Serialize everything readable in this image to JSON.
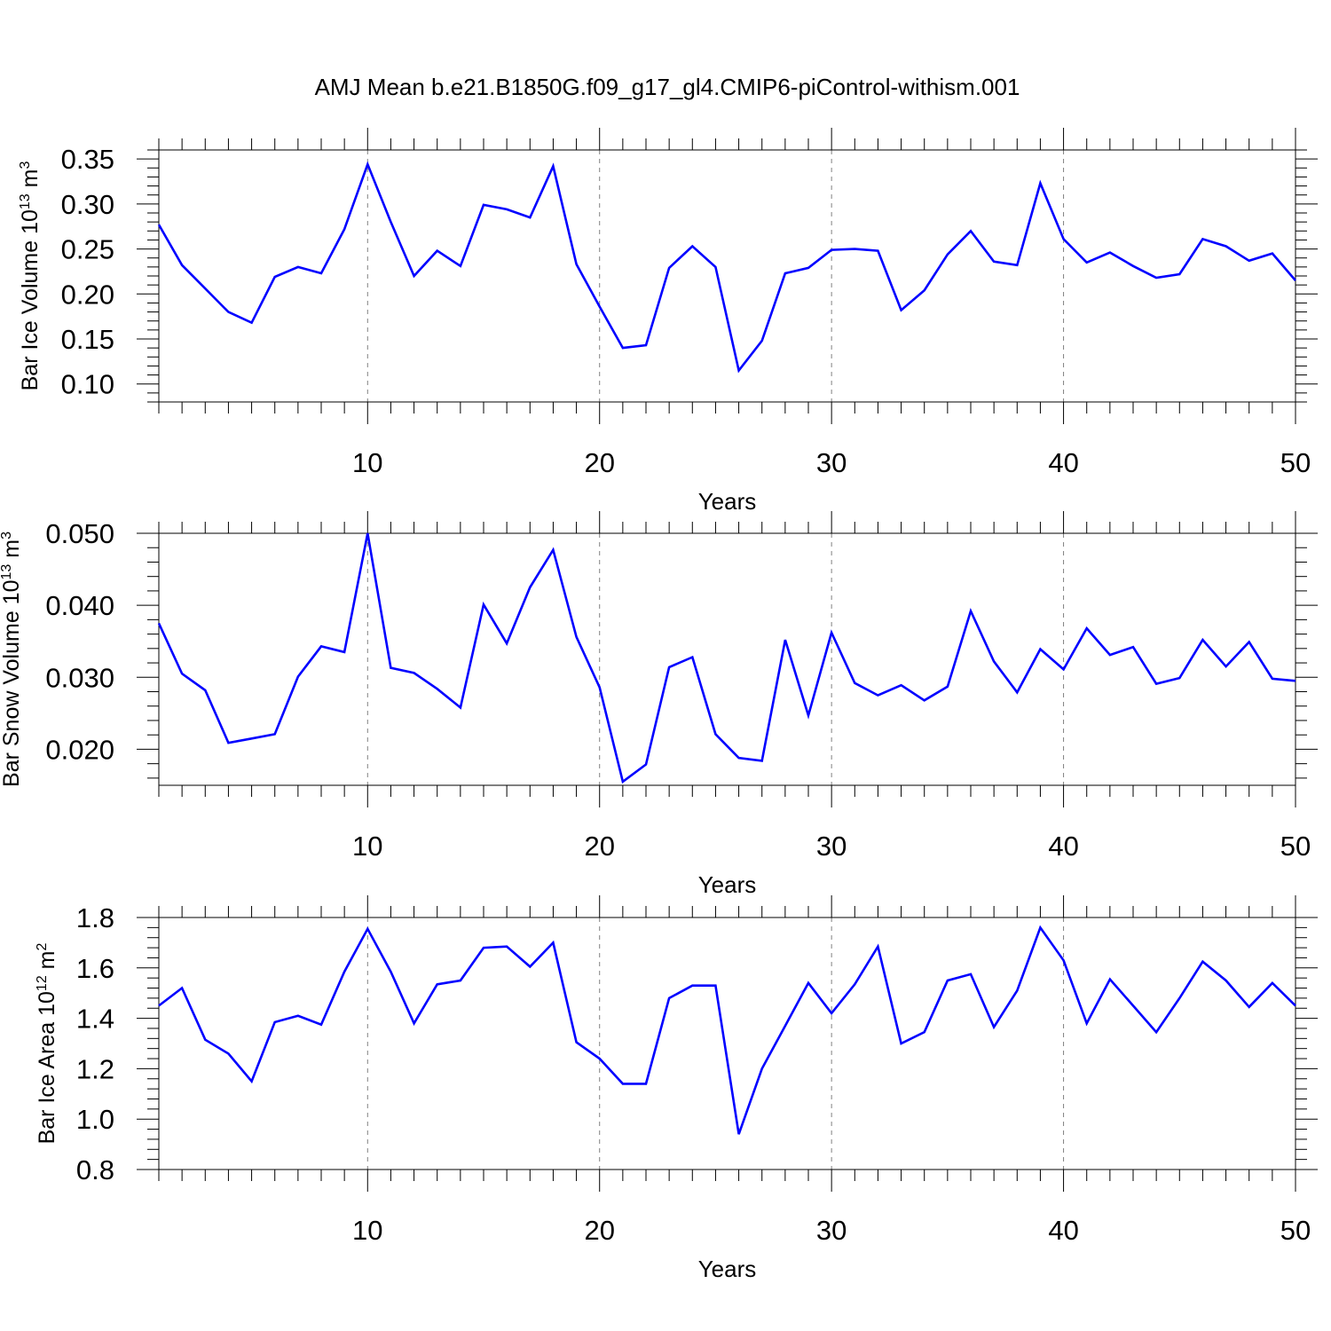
{
  "title": "AMJ Mean b.e21.B1850G.f09_g17_gl4.CMIP6-piControl-withism.001",
  "colors": {
    "line": "#0000ff",
    "axis": "#000000",
    "grid": "#808080",
    "background": "#ffffff"
  },
  "chart_data": [
    {
      "type": "line",
      "ylabel": {
        "text": "Bar Ice Volume 10",
        "exp": "13",
        "unit": " m",
        "unit_exp": "3"
      },
      "xlabel": "Years",
      "xlim": [
        1,
        50
      ],
      "ylim": [
        0.08,
        0.36
      ],
      "xticks": [
        10,
        20,
        30,
        40,
        50
      ],
      "xtick_labels": [
        "10",
        "20",
        "30",
        "40",
        "50"
      ],
      "yticks": [
        0.1,
        0.15,
        0.2,
        0.25,
        0.3,
        0.35
      ],
      "ytick_labels": [
        "0.10",
        "0.15",
        "0.20",
        "0.25",
        "0.30",
        "0.35"
      ],
      "grid": "vertical dashed at major x ticks",
      "x": [
        1,
        2,
        3,
        4,
        5,
        6,
        7,
        8,
        9,
        10,
        11,
        12,
        13,
        14,
        15,
        16,
        17,
        18,
        19,
        20,
        21,
        22,
        23,
        24,
        25,
        26,
        27,
        28,
        29,
        30,
        31,
        32,
        33,
        34,
        35,
        36,
        37,
        38,
        39,
        40,
        41,
        42,
        43,
        44,
        45,
        46,
        47,
        48,
        49,
        50
      ],
      "y": [
        0.277,
        0.232,
        0.206,
        0.18,
        0.168,
        0.219,
        0.23,
        0.223,
        0.272,
        0.344,
        0.28,
        0.22,
        0.248,
        0.231,
        0.299,
        0.294,
        0.285,
        0.342,
        0.233,
        0.186,
        0.14,
        0.143,
        0.229,
        0.253,
        0.23,
        0.115,
        0.148,
        0.223,
        0.229,
        0.249,
        0.25,
        0.248,
        0.182,
        0.204,
        0.244,
        0.27,
        0.236,
        0.232,
        0.323,
        0.261,
        0.235,
        0.246,
        0.231,
        0.218,
        0.222,
        0.261,
        0.253,
        0.237,
        0.245,
        0.215
      ]
    },
    {
      "type": "line",
      "ylabel": {
        "text": "Bar Snow Volume 10",
        "exp": "13",
        "unit": " m",
        "unit_exp": "3"
      },
      "xlabel": "Years",
      "xlim": [
        1,
        50
      ],
      "ylim": [
        0.015,
        0.05
      ],
      "xticks": [
        10,
        20,
        30,
        40,
        50
      ],
      "xtick_labels": [
        "10",
        "20",
        "30",
        "40",
        "50"
      ],
      "yticks": [
        0.02,
        0.03,
        0.04,
        0.05
      ],
      "ytick_labels": [
        "0.020",
        "0.030",
        "0.040",
        "0.050"
      ],
      "grid": "vertical dashed at major x ticks",
      "x": [
        1,
        2,
        3,
        4,
        5,
        6,
        7,
        8,
        9,
        10,
        11,
        12,
        13,
        14,
        15,
        16,
        17,
        18,
        19,
        20,
        21,
        22,
        23,
        24,
        25,
        26,
        27,
        28,
        29,
        30,
        31,
        32,
        33,
        34,
        35,
        36,
        37,
        38,
        39,
        40,
        41,
        42,
        43,
        44,
        45,
        46,
        47,
        48,
        49,
        50
      ],
      "y": [
        0.0375,
        0.0305,
        0.0282,
        0.0209,
        0.0215,
        0.0221,
        0.0301,
        0.0343,
        0.0335,
        0.05,
        0.0313,
        0.0306,
        0.0284,
        0.0258,
        0.0401,
        0.0347,
        0.0425,
        0.0477,
        0.0356,
        0.0286,
        0.0155,
        0.0179,
        0.0314,
        0.0328,
        0.0221,
        0.0188,
        0.0184,
        0.0352,
        0.0247,
        0.0362,
        0.0292,
        0.0275,
        0.0289,
        0.0268,
        0.0287,
        0.0392,
        0.0322,
        0.0279,
        0.0339,
        0.0311,
        0.0368,
        0.0331,
        0.0342,
        0.0291,
        0.0299,
        0.0352,
        0.0315,
        0.0349,
        0.0298,
        0.0295
      ]
    },
    {
      "type": "line",
      "ylabel": {
        "text": "Bar Ice Area 10",
        "exp": "12",
        "unit": " m",
        "unit_exp": "2"
      },
      "xlabel": "Years",
      "xlim": [
        1,
        50
      ],
      "ylim": [
        0.8,
        1.8
      ],
      "xticks": [
        10,
        20,
        30,
        40,
        50
      ],
      "xtick_labels": [
        "10",
        "20",
        "30",
        "40",
        "50"
      ],
      "yticks": [
        0.8,
        1.0,
        1.2,
        1.4,
        1.6,
        1.8
      ],
      "ytick_labels": [
        "0.8",
        "1.0",
        "1.2",
        "1.4",
        "1.6",
        "1.8"
      ],
      "grid": "vertical dashed at major x ticks",
      "x": [
        1,
        2,
        3,
        4,
        5,
        6,
        7,
        8,
        9,
        10,
        11,
        12,
        13,
        14,
        15,
        16,
        17,
        18,
        19,
        20,
        21,
        22,
        23,
        24,
        25,
        26,
        27,
        28,
        29,
        30,
        31,
        32,
        33,
        34,
        35,
        36,
        37,
        38,
        39,
        40,
        41,
        42,
        43,
        44,
        45,
        46,
        47,
        48,
        49,
        50
      ],
      "y": [
        1.45,
        1.52,
        1.315,
        1.26,
        1.15,
        1.385,
        1.41,
        1.375,
        1.585,
        1.755,
        1.585,
        1.38,
        1.535,
        1.55,
        1.68,
        1.685,
        1.605,
        1.7,
        1.305,
        1.24,
        1.14,
        1.14,
        1.48,
        1.53,
        1.53,
        0.94,
        1.2,
        1.37,
        1.54,
        1.42,
        1.535,
        1.685,
        1.3,
        1.345,
        1.55,
        1.575,
        1.365,
        1.51,
        1.76,
        1.63,
        1.38,
        1.555,
        1.45,
        1.345,
        1.48,
        1.625,
        1.55,
        1.445,
        1.54,
        1.45
      ]
    }
  ]
}
